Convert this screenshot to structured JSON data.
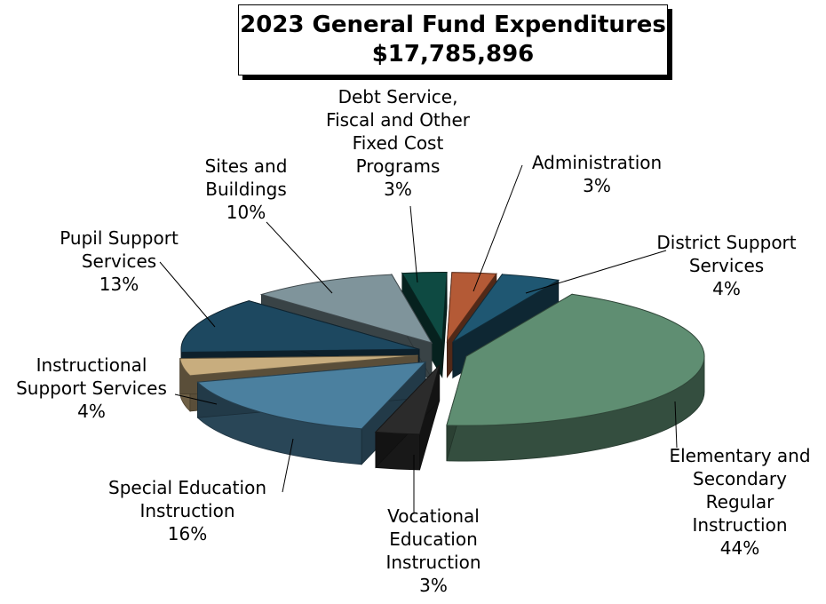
{
  "title_line1": "2023 General Fund Expenditures",
  "title_line2": "$17,785,896",
  "chart_data": {
    "type": "pie",
    "title": "2023 General Fund Expenditures $17,785,896",
    "slices": [
      {
        "name": "Administration",
        "value": 3,
        "label_lines": [
          "Administration",
          "3%"
        ],
        "color": "#b45a36"
      },
      {
        "name": "District Support Services",
        "value": 4,
        "label_lines": [
          "District Support",
          "Services",
          "4%"
        ],
        "color": "#1f5772"
      },
      {
        "name": "Elementary and Secondary Regular Instruction",
        "value": 44,
        "label_lines": [
          "Elementary and",
          "Secondary",
          "Regular",
          "Instruction",
          "44%"
        ],
        "color": "#5f8e72"
      },
      {
        "name": "Vocational Education Instruction",
        "value": 3,
        "label_lines": [
          "Vocational",
          "Education",
          "Instruction",
          "3%"
        ],
        "color": "#2b2b2b"
      },
      {
        "name": "Special Education Instruction",
        "value": 16,
        "label_lines": [
          "Special Education",
          "Instruction",
          "16%"
        ],
        "color": "#4b809f"
      },
      {
        "name": "Instructional Support Services",
        "value": 4,
        "label_lines": [
          "Instructional",
          "Support Services",
          "4%"
        ],
        "color": "#c8ad7e"
      },
      {
        "name": "Pupil Support Services",
        "value": 13,
        "label_lines": [
          "Pupil Support",
          "Services",
          "13%"
        ],
        "color": "#1d4860"
      },
      {
        "name": "Sites and Buildings",
        "value": 10,
        "label_lines": [
          "Sites and",
          "Buildings",
          "10%"
        ],
        "color": "#7f949b"
      },
      {
        "name": "Debt Service, Fiscal and Other Fixed Cost Programs",
        "value": 3,
        "label_lines": [
          "Debt Service,",
          "Fiscal and Other",
          "Fixed Cost",
          "Programs",
          "3%"
        ],
        "color": "#0e4a42"
      }
    ]
  }
}
